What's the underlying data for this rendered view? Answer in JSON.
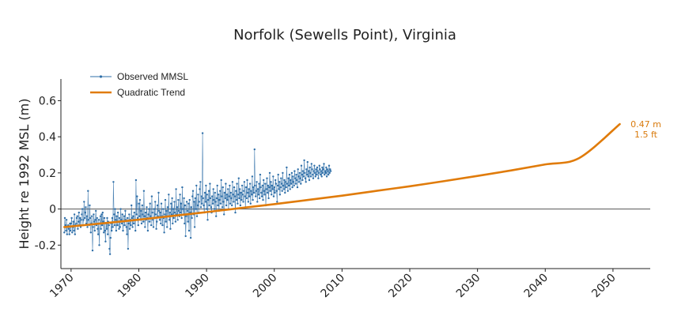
{
  "chart_data": {
    "type": "line",
    "title": "Norfolk (Sewells Point), Virginia",
    "xlabel": "",
    "ylabel": "Height re 1992 MSL (m)",
    "xlim": [
      1968.5,
      2055.5
    ],
    "ylim": [
      -0.33,
      0.72
    ],
    "xticks": [
      1970,
      1980,
      1990,
      2000,
      2010,
      2020,
      2030,
      2040,
      2050
    ],
    "xtick_labels": [
      "1970",
      "1980",
      "1990",
      "2000",
      "2010",
      "2020",
      "2030",
      "2040",
      "2050"
    ],
    "yticks": [
      -0.2,
      0,
      0.2,
      0.4,
      0.6
    ],
    "ytick_labels": [
      "-0.2",
      "0",
      "0.2",
      "0.4",
      "0.6"
    ],
    "zero_line": 0,
    "legend_position": "top-left",
    "series": [
      {
        "name": "Observed MMSL",
        "color": "#2f6fa8",
        "style": "line-with-points",
        "x_start": 1969.0,
        "x_step": 0.0833333,
        "values": [
          -0.13,
          -0.05,
          -0.09,
          -0.12,
          -0.06,
          -0.14,
          -0.1,
          -0.09,
          -0.11,
          -0.14,
          -0.08,
          -0.12,
          -0.08,
          -0.05,
          -0.13,
          -0.1,
          -0.07,
          -0.12,
          -0.03,
          -0.14,
          -0.09,
          -0.08,
          -0.05,
          -0.04,
          -0.11,
          -0.07,
          -0.02,
          -0.09,
          -0.05,
          -0.1,
          -0.06,
          -0.03,
          0.0,
          -0.09,
          -0.06,
          0.04,
          -0.05,
          -0.02,
          0.01,
          -0.08,
          -0.04,
          -0.1,
          0.1,
          -0.06,
          -0.09,
          0.02,
          -0.05,
          -0.13,
          -0.08,
          -0.04,
          -0.23,
          -0.1,
          -0.03,
          -0.07,
          -0.12,
          -0.06,
          -0.01,
          -0.09,
          -0.05,
          -0.11,
          -0.14,
          -0.06,
          -0.2,
          -0.08,
          -0.04,
          -0.11,
          -0.03,
          -0.09,
          -0.02,
          -0.07,
          -0.13,
          -0.05,
          -0.12,
          -0.18,
          -0.08,
          -0.11,
          -0.05,
          -0.14,
          -0.07,
          -0.09,
          -0.22,
          -0.25,
          -0.16,
          -0.08,
          -0.12,
          -0.05,
          -0.1,
          0.15,
          -0.03,
          -0.09,
          0.0,
          -0.06,
          -0.12,
          -0.04,
          -0.09,
          -0.02,
          -0.07,
          -0.11,
          -0.05,
          -0.1,
          0.0,
          -0.06,
          -0.08,
          -0.03,
          -0.12,
          -0.07,
          -0.04,
          -0.09,
          -0.01,
          -0.06,
          -0.1,
          -0.14,
          -0.05,
          -0.22,
          -0.08,
          -0.03,
          -0.11,
          -0.06,
          -0.09,
          0.02,
          -0.05,
          -0.1,
          -0.04,
          -0.08,
          -0.02,
          -0.06,
          -0.12,
          0.16,
          -0.03,
          0.07,
          -0.05,
          -0.09,
          0.03,
          -0.04,
          0.05,
          -0.06,
          -0.01,
          -0.08,
          0.02,
          -0.03,
          -0.07,
          0.1,
          -0.04,
          -0.1,
          -0.02,
          -0.06,
          0.01,
          -0.05,
          -0.12,
          -0.03,
          0.0,
          -0.07,
          0.03,
          -0.04,
          -0.09,
          0.07,
          -0.02,
          -0.06,
          -0.1,
          0.0,
          -0.05,
          0.04,
          -0.03,
          -0.11,
          -0.07,
          0.02,
          -0.04,
          0.09,
          -0.01,
          -0.06,
          -0.02,
          -0.08,
          0.03,
          -0.04,
          -0.09,
          0.0,
          -0.05,
          -0.13,
          -0.03,
          0.05,
          -0.07,
          -0.01,
          -0.1,
          0.01,
          -0.04,
          0.08,
          -0.06,
          -0.02,
          -0.11,
          0.03,
          -0.03,
          0.06,
          -0.08,
          0.0,
          -0.05,
          0.04,
          -0.02,
          -0.07,
          0.11,
          -0.03,
          0.01,
          -0.06,
          0.05,
          -0.01,
          -0.04,
          0.08,
          -0.02,
          0.03,
          -0.05,
          0.12,
          0.0,
          -0.03,
          0.06,
          -0.08,
          0.02,
          -0.15,
          -0.04,
          0.04,
          -0.01,
          -0.07,
          0.03,
          -0.12,
          0.05,
          -0.02,
          -0.16,
          0.01,
          -0.05,
          0.07,
          0.1,
          -0.03,
          0.04,
          -0.1,
          0.06,
          0.0,
          0.13,
          -0.04,
          0.02,
          0.08,
          -0.02,
          0.04,
          0.11,
          0.15,
          0.01,
          0.07,
          0.03,
          0.42,
          0.06,
          0.02,
          -0.02,
          0.09,
          0.04,
          0.13,
          0.0,
          0.08,
          -0.06,
          0.05,
          0.1,
          0.02,
          0.14,
          0.06,
          0.01,
          -0.02,
          0.07,
          0.03,
          0.11,
          0.05,
          0.0,
          0.09,
          0.04,
          -0.04,
          0.06,
          0.13,
          0.02,
          0.08,
          -0.01,
          0.05,
          0.1,
          0.03,
          0.16,
          0.07,
          0.01,
          0.12,
          0.04,
          -0.03,
          0.09,
          0.06,
          0.14,
          0.02,
          0.08,
          0.05,
          0.11,
          0.0,
          0.07,
          0.13,
          0.03,
          0.09,
          0.06,
          0.02,
          0.15,
          0.08,
          0.04,
          0.12,
          0.07,
          -0.02,
          0.1,
          0.05,
          0.14,
          0.03,
          0.08,
          0.17,
          0.06,
          0.11,
          0.02,
          0.09,
          0.05,
          0.13,
          0.08,
          0.04,
          0.1,
          0.15,
          0.07,
          0.01,
          0.12,
          0.06,
          0.16,
          0.09,
          0.04,
          0.11,
          0.07,
          0.14,
          0.03,
          0.1,
          0.08,
          0.18,
          0.05,
          0.12,
          0.09,
          0.33,
          0.13,
          0.07,
          0.1,
          0.15,
          0.04,
          0.11,
          0.08,
          0.14,
          0.06,
          0.19,
          0.12,
          0.09,
          0.07,
          0.13,
          0.05,
          0.16,
          0.1,
          0.08,
          0.14,
          0.02,
          0.11,
          0.17,
          0.09,
          0.13,
          0.06,
          0.12,
          0.2,
          0.1,
          0.15,
          0.08,
          0.13,
          0.11,
          0.18,
          0.07,
          0.12,
          0.09,
          0.16,
          0.14,
          0.1,
          0.04,
          0.13,
          0.19,
          0.11,
          0.15,
          0.08,
          0.12,
          0.17,
          0.14,
          0.1,
          0.2,
          0.13,
          0.11,
          0.16,
          0.09,
          0.15,
          0.12,
          0.23,
          0.14,
          0.1,
          0.17,
          0.13,
          0.19,
          0.11,
          0.16,
          0.14,
          0.2,
          0.12,
          0.18,
          0.15,
          0.13,
          0.21,
          0.17,
          0.14,
          0.19,
          0.16,
          0.12,
          0.22,
          0.18,
          0.15,
          0.2,
          0.17,
          0.14,
          0.24,
          0.19,
          0.16,
          0.21,
          0.18,
          0.27,
          0.2,
          0.17,
          0.15,
          0.22,
          0.19,
          0.26,
          0.18,
          0.21,
          0.16,
          0.23,
          0.2,
          0.18,
          0.25,
          0.22,
          0.19,
          0.17,
          0.21,
          0.24,
          0.2,
          0.18,
          0.22,
          0.19,
          0.23,
          0.21,
          0.17,
          0.2,
          0.24,
          0.22,
          0.19,
          0.21,
          0.18,
          0.23,
          0.2,
          0.22,
          0.25,
          0.19,
          0.21,
          0.2,
          0.23,
          0.18,
          0.22,
          0.21,
          0.19,
          0.24,
          0.2,
          0.22,
          0.21
        ]
      },
      {
        "name": "Quadratic Trend",
        "color": "#e07b0a",
        "style": "line",
        "x": [
          1969,
          1975,
          1980,
          1985,
          1990,
          1995,
          2000,
          2005,
          2010,
          2015,
          2020,
          2025,
          2030,
          2035,
          2040,
          2045,
          2051
        ],
        "values": [
          -0.1,
          -0.078,
          -0.059,
          -0.038,
          -0.017,
          0.005,
          0.027,
          0.05,
          0.074,
          0.1,
          0.126,
          0.154,
          0.183,
          0.214,
          0.247,
          0.282,
          0.47
        ]
      }
    ],
    "annotations": [
      {
        "lines": [
          "0.47 m",
          "1.5 ft"
        ],
        "x": 2051,
        "y": 0.47,
        "color": "#d97a0c"
      }
    ]
  }
}
